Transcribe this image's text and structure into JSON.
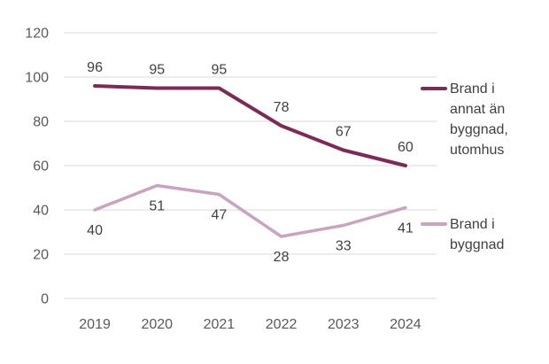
{
  "chart_data": {
    "type": "line",
    "title": "",
    "xlabel": "",
    "ylabel": "",
    "categories": [
      "2019",
      "2020",
      "2021",
      "2022",
      "2023",
      "2024"
    ],
    "series": [
      {
        "name": "Brand i annat än byggnad, utomhus",
        "values": [
          96,
          95,
          95,
          78,
          67,
          60
        ],
        "color": "#7C2A56",
        "stroke_width": 4,
        "label_position": "above"
      },
      {
        "name": "Brand i byggnad",
        "values": [
          40,
          51,
          47,
          28,
          33,
          41
        ],
        "color": "#C9A4BF",
        "stroke_width": 3.5,
        "label_position": "below"
      }
    ],
    "y_ticks": [
      0,
      20,
      40,
      60,
      80,
      100,
      120
    ],
    "ylim": [
      0,
      120
    ],
    "grid": true,
    "data_labels": true,
    "legend_position": "right",
    "colors": {
      "gridline": "#D9D9D9",
      "tick_label": "#595959",
      "data_label": "#404040",
      "legend_text": "#404040",
      "background": "#FFFFFF"
    }
  }
}
